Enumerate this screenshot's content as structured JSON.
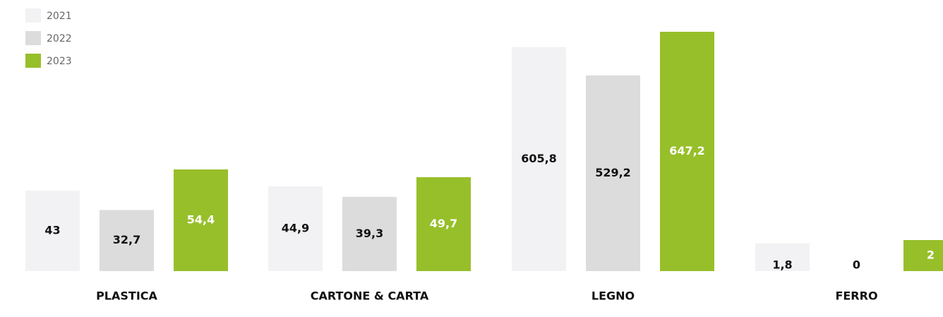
{
  "chart_data": {
    "type": "bar",
    "categories": [
      "PLASTICA",
      "CARTONE & CARTA",
      "LEGNO",
      "FERRO"
    ],
    "series": [
      {
        "name": "2021",
        "color": "#f2f2f4",
        "values": [
          43,
          44.9,
          605.8,
          1.8
        ],
        "value_labels": [
          "43",
          "44,9",
          "605,8",
          "1,8"
        ]
      },
      {
        "name": "2022",
        "color": "#dcdcdc",
        "values": [
          32.7,
          39.3,
          529.2,
          0
        ],
        "value_labels": [
          "32,7",
          "39,3",
          "529,2",
          "0"
        ]
      },
      {
        "name": "2023",
        "color": "#97bf2a",
        "values": [
          54.4,
          49.7,
          647.2,
          2
        ],
        "value_labels": [
          "54,4",
          "49,7",
          "647,2",
          "2"
        ]
      }
    ],
    "legend": "top-left"
  }
}
